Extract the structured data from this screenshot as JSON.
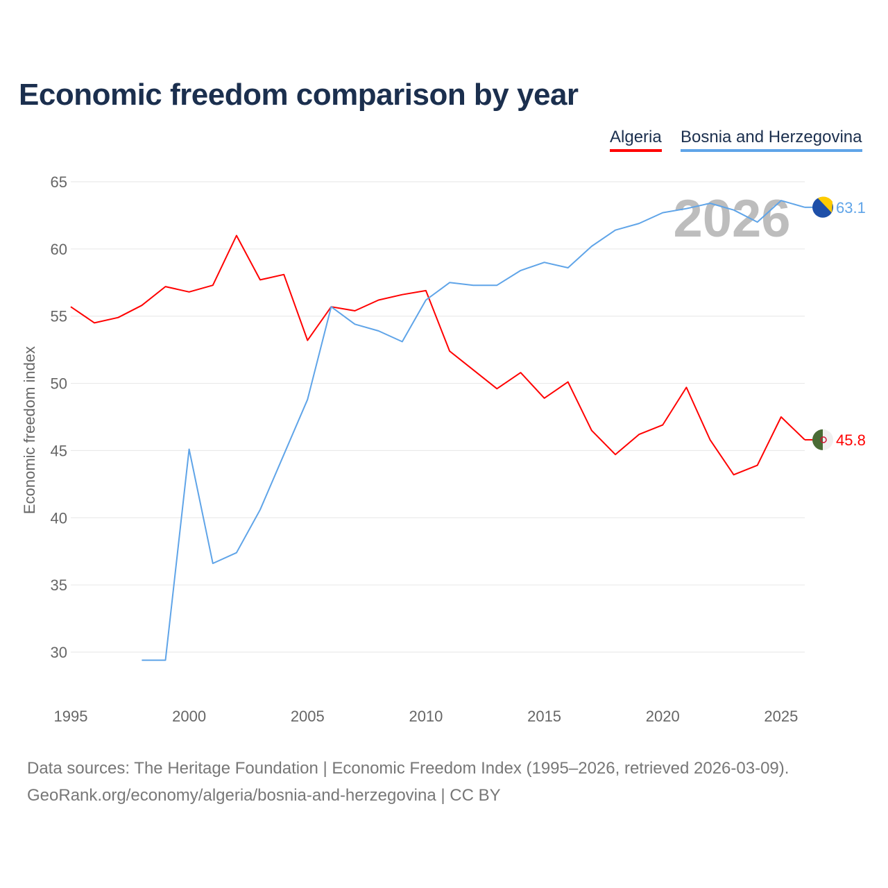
{
  "chart_data": {
    "type": "line",
    "title": "Economic freedom comparison by year",
    "xlabel": "",
    "ylabel": "Economic freedom index",
    "xlim": [
      1995,
      2026
    ],
    "ylim": [
      27,
      65
    ],
    "yticks": [
      30,
      35,
      40,
      45,
      50,
      55,
      60,
      65
    ],
    "xticks": [
      1995,
      2000,
      2005,
      2010,
      2015,
      2020,
      2025
    ],
    "grid": true,
    "legend_position": "top-right",
    "year_watermark": "2026",
    "series": [
      {
        "name": "Algeria",
        "color": "#ff0000",
        "end_label": "45.8",
        "x": [
          1995,
          1996,
          1997,
          1998,
          1999,
          2000,
          2001,
          2002,
          2003,
          2004,
          2005,
          2006,
          2007,
          2008,
          2009,
          2010,
          2011,
          2012,
          2013,
          2014,
          2015,
          2016,
          2017,
          2018,
          2019,
          2020,
          2021,
          2022,
          2023,
          2024,
          2025,
          2026
        ],
        "values": [
          55.7,
          54.5,
          54.9,
          55.8,
          57.2,
          56.8,
          57.3,
          61.0,
          57.7,
          58.1,
          53.2,
          55.7,
          55.4,
          56.2,
          56.6,
          56.9,
          52.4,
          51.0,
          49.6,
          50.8,
          48.9,
          50.1,
          46.5,
          44.7,
          46.2,
          46.9,
          49.7,
          45.8,
          43.2,
          43.9,
          47.5,
          45.8
        ]
      },
      {
        "name": "Bosnia and Herzegovina",
        "color": "#5fa4e8",
        "end_label": "63.1",
        "x": [
          1998,
          1999,
          2000,
          2001,
          2002,
          2003,
          2004,
          2005,
          2006,
          2007,
          2008,
          2009,
          2010,
          2011,
          2012,
          2013,
          2014,
          2015,
          2016,
          2017,
          2018,
          2019,
          2020,
          2021,
          2022,
          2023,
          2024,
          2025,
          2026
        ],
        "values": [
          29.4,
          29.4,
          45.1,
          36.6,
          37.4,
          40.6,
          44.7,
          48.8,
          55.7,
          54.4,
          53.9,
          53.1,
          56.2,
          57.5,
          57.3,
          57.3,
          58.4,
          59.0,
          58.6,
          60.2,
          61.4,
          61.9,
          62.7,
          63.0,
          63.4,
          62.9,
          62.0,
          63.6,
          63.1
        ]
      }
    ]
  },
  "footer": {
    "line1": "Data sources: The Heritage Foundation | Economic Freedom Index (1995–2026, retrieved 2026-03-09).",
    "line2": "GeoRank.org/economy/algeria/bosnia-and-herzegovina | CC BY"
  }
}
